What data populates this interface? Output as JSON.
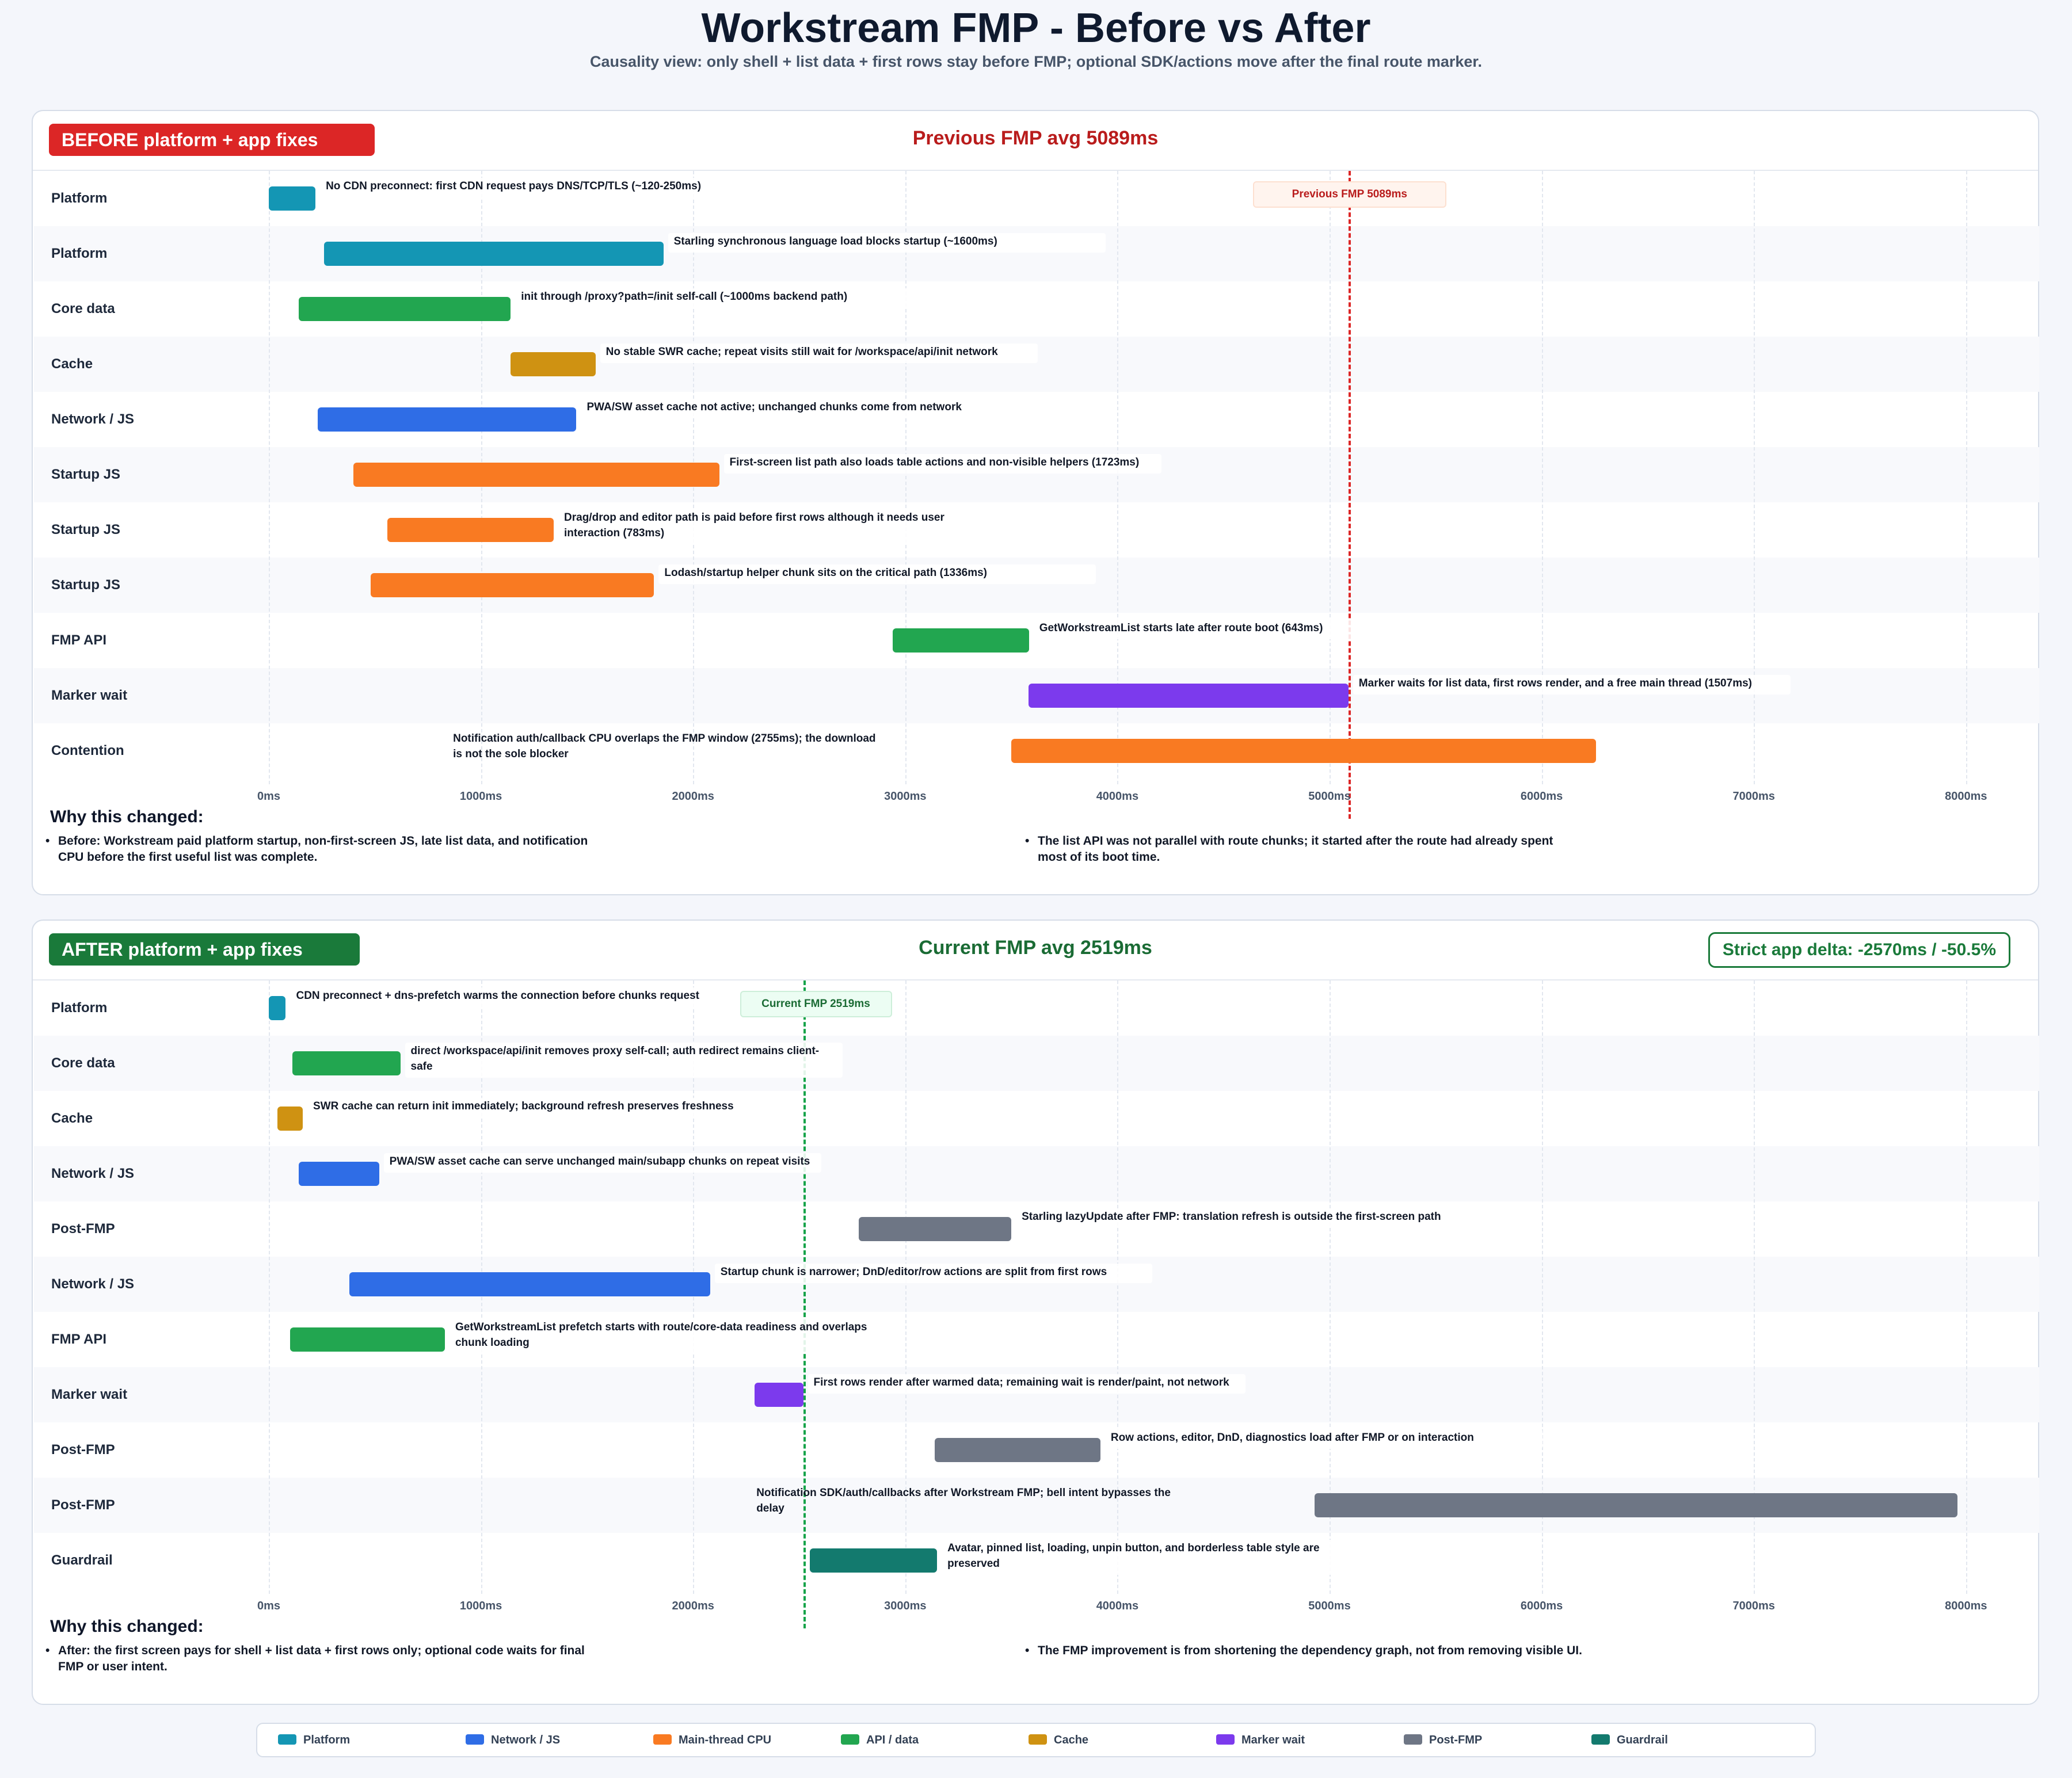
{
  "title": "Workstream FMP - Before vs After",
  "subtitle": "Causality view: only shell + list data + first rows stay before FMP; optional SDK/actions move after the final route marker.",
  "colors": {
    "platform": "#1496b4",
    "network_js": "#2f6de6",
    "cpu": "#f97a22",
    "api": "#22a650",
    "cache": "#cf9212",
    "marker": "#7c3aed",
    "postfmp": "#6e7685",
    "guardrail": "#137a6e",
    "before_accent": "#dc2626",
    "after_accent": "#1a7a3a"
  },
  "chart_data": [
    {
      "type": "bar",
      "subtype": "gantt",
      "panel_label": "BEFORE platform + app fixes",
      "title": "Previous FMP avg 5089ms",
      "x_unit": "ms",
      "xlim": [
        0,
        8300
      ],
      "x_ticks": [
        "0ms",
        "1000ms",
        "2000ms",
        "3000ms",
        "4000ms",
        "5000ms",
        "6000ms",
        "7000ms",
        "8000ms"
      ],
      "fmp_marker": {
        "x": 5089,
        "label": "Previous FMP 5089ms"
      },
      "rows": [
        {
          "label": "Platform",
          "start": 0,
          "end": 220,
          "color": "platform",
          "note": "No CDN preconnect: first CDN request pays DNS/TCP/TLS (~120-250ms)"
        },
        {
          "label": "Platform",
          "start": 260,
          "end": 1860,
          "color": "platform",
          "note": "Starling synchronous language load blocks startup (~1600ms)"
        },
        {
          "label": "Core data",
          "start": 140,
          "end": 1140,
          "color": "api",
          "note": "init through /proxy?path=/init self-call (~1000ms backend path)"
        },
        {
          "label": "Cache",
          "start": 1140,
          "end": 1540,
          "color": "cache",
          "note": "No stable SWR cache; repeat visits still wait for /workspace/api/init network"
        },
        {
          "label": "Network / JS",
          "start": 230,
          "end": 1450,
          "color": "network_js",
          "note": "PWA/SW asset cache not active; unchanged chunks come from network"
        },
        {
          "label": "Startup JS",
          "start": 400,
          "end": 2123,
          "color": "cpu",
          "note": "First-screen list path also loads table actions and non-visible helpers (1723ms)"
        },
        {
          "label": "Startup JS",
          "start": 560,
          "end": 1343,
          "color": "cpu",
          "note": "Drag/drop and editor path is paid before first rows although it needs user interaction (783ms)"
        },
        {
          "label": "Startup JS",
          "start": 480,
          "end": 1816,
          "color": "cpu",
          "note": "Lodash/startup helper chunk sits on the critical path (1336ms)"
        },
        {
          "label": "FMP API",
          "start": 2940,
          "end": 3583,
          "color": "api",
          "note": "GetWorkstreamList starts late after route boot (643ms)"
        },
        {
          "label": "Marker wait",
          "start": 3582,
          "end": 5089,
          "color": "marker",
          "note": "Marker waits for list data, first rows render, and a free main thread (1507ms)"
        },
        {
          "label": "Contention",
          "start": 3500,
          "end": 6255,
          "color": "cpu",
          "note": "Notification auth/callback CPU overlaps the FMP window (2755ms); the download is not the sole blocker",
          "note_side": "left"
        }
      ],
      "why_heading": "Why this changed:",
      "why": [
        "Before: Workstream paid platform startup, non-first-screen JS, late list data, and notification CPU before the first useful list was complete.",
        "The list API was not parallel with route chunks; it started after the route had already spent most of its boot time."
      ]
    },
    {
      "type": "bar",
      "subtype": "gantt",
      "panel_label": "AFTER platform + app fixes",
      "title": "Current FMP avg 2519ms",
      "delta": "Strict app delta: -2570ms / -50.5%",
      "x_unit": "ms",
      "xlim": [
        0,
        8300
      ],
      "x_ticks": [
        "0ms",
        "1000ms",
        "2000ms",
        "3000ms",
        "4000ms",
        "5000ms",
        "6000ms",
        "7000ms",
        "8000ms"
      ],
      "fmp_marker": {
        "x": 2519,
        "label": "Current FMP 2519ms"
      },
      "rows": [
        {
          "label": "Platform",
          "start": 0,
          "end": 80,
          "color": "platform",
          "note": "CDN preconnect + dns-prefetch warms the connection before chunks request"
        },
        {
          "label": "Core data",
          "start": 110,
          "end": 620,
          "color": "api",
          "note": "direct /workspace/api/init removes proxy self-call; auth redirect remains client-safe"
        },
        {
          "label": "Cache",
          "start": 40,
          "end": 160,
          "color": "cache",
          "note": "SWR cache can return init immediately; background refresh preserves freshness"
        },
        {
          "label": "Network / JS",
          "start": 140,
          "end": 520,
          "color": "network_js",
          "note": "PWA/SW asset cache can serve unchanged main/subapp chunks on repeat visits"
        },
        {
          "label": "Post-FMP",
          "start": 2780,
          "end": 3500,
          "color": "postfmp",
          "note": "Starling lazyUpdate after FMP: translation refresh is outside the first-screen path"
        },
        {
          "label": "Network / JS",
          "start": 380,
          "end": 2080,
          "color": "network_js",
          "note": "Startup chunk is narrower; DnD/editor/row actions are split from first rows"
        },
        {
          "label": "FMP API",
          "start": 100,
          "end": 830,
          "color": "api",
          "note": "GetWorkstreamList prefetch starts with route/core-data readiness and overlaps chunk loading"
        },
        {
          "label": "Marker wait",
          "start": 2290,
          "end": 2519,
          "color": "marker",
          "note": "First rows render after warmed data; remaining wait is render/paint, not network"
        },
        {
          "label": "Post-FMP",
          "start": 3140,
          "end": 3920,
          "color": "postfmp",
          "note": "Row actions, editor, DnD, diagnostics load after FMP or on interaction"
        },
        {
          "label": "Post-FMP",
          "start": 4930,
          "end": 7960,
          "color": "postfmp",
          "note": "Notification SDK/auth/callbacks after Workstream FMP; bell intent bypasses the delay",
          "note_side": "left"
        },
        {
          "label": "Guardrail",
          "start": 2550,
          "end": 3150,
          "color": "guardrail",
          "note": "Avatar, pinned list, loading, unpin button, and borderless table style are preserved"
        }
      ],
      "why_heading": "Why this changed:",
      "why": [
        "After: the first screen pays for shell + list data + first rows only; optional code waits for final FMP or user intent.",
        "The FMP improvement is from shortening the dependency graph, not from removing visible UI."
      ]
    }
  ],
  "legend": [
    {
      "label": "Platform",
      "color": "platform"
    },
    {
      "label": "Network / JS",
      "color": "network_js"
    },
    {
      "label": "Main-thread CPU",
      "color": "cpu"
    },
    {
      "label": "API / data",
      "color": "api"
    },
    {
      "label": "Cache",
      "color": "cache"
    },
    {
      "label": "Marker wait",
      "color": "marker"
    },
    {
      "label": "Post-FMP",
      "color": "postfmp"
    },
    {
      "label": "Guardrail",
      "color": "guardrail"
    }
  ]
}
